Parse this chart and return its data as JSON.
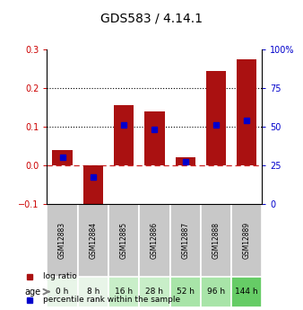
{
  "title": "GDS583 / 4.14.1",
  "categories": [
    "GSM12883",
    "GSM12884",
    "GSM12885",
    "GSM12886",
    "GSM12887",
    "GSM12888",
    "GSM12889"
  ],
  "age_labels": [
    "0 h",
    "8 h",
    "16 h",
    "28 h",
    "52 h",
    "96 h",
    "144 h"
  ],
  "age_colors": [
    "#e8f5e8",
    "#e8f5e8",
    "#c8eec8",
    "#c8eec8",
    "#a8e4a8",
    "#a8e4a8",
    "#66cc66"
  ],
  "log_ratio": [
    0.04,
    -0.13,
    0.155,
    0.14,
    0.02,
    0.245,
    0.275
  ],
  "percentile_rank_pct": [
    30,
    17,
    51,
    48,
    27,
    51,
    54
  ],
  "bar_color": "#aa1111",
  "dot_color": "#0000cc",
  "ylim_left": [
    -0.1,
    0.3
  ],
  "ylim_right": [
    0,
    100
  ],
  "yticks_left": [
    -0.1,
    0,
    0.1,
    0.2,
    0.3
  ],
  "yticks_right": [
    0,
    25,
    50,
    75,
    100
  ],
  "ytick_right_labels": [
    "0",
    "25",
    "50",
    "75",
    "100%"
  ],
  "hline_dotted": [
    0.1,
    0.2
  ],
  "left_tick_color": "#cc0000",
  "right_tick_color": "#0000cc",
  "title_fontsize": 10,
  "tick_fontsize": 7,
  "gsm_fontsize": 5.5,
  "age_fontsize": 6.5,
  "legend_fontsize": 6.5,
  "age_row_label": "age",
  "legend_log_ratio": "log ratio",
  "legend_percentile": "percentile rank within the sample",
  "gsm_bg_color": "#c8c8c8",
  "gsm_edge_color": "white"
}
